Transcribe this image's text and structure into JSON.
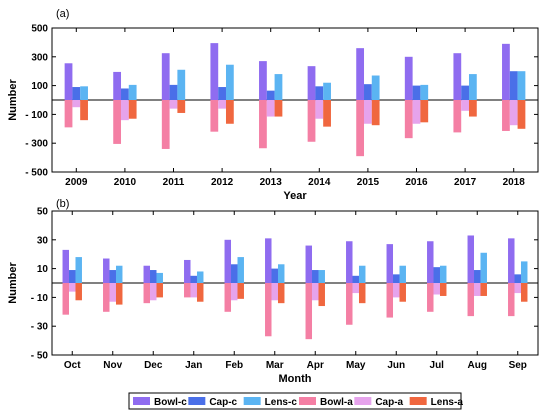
{
  "chart_data": [
    {
      "type": "bar",
      "panel_label": "(a)",
      "xlabel": "Year",
      "ylabel": "Number",
      "ylim": [
        -500,
        500
      ],
      "yticks": [
        -500,
        -300,
        -100,
        100,
        300,
        500
      ],
      "categories": [
        "2009",
        "2010",
        "2011",
        "2012",
        "2013",
        "2014",
        "2015",
        "2016",
        "2017",
        "2018"
      ],
      "series": [
        {
          "name": "Bowl-c",
          "color": "#8f6cf0",
          "values": [
            255,
            195,
            325,
            395,
            270,
            235,
            360,
            300,
            325,
            390
          ]
        },
        {
          "name": "Cap-c",
          "color": "#4a6fe8",
          "values": [
            90,
            80,
            105,
            90,
            65,
            95,
            110,
            100,
            100,
            200
          ]
        },
        {
          "name": "Lens-c",
          "color": "#5bb4f2",
          "values": [
            95,
            105,
            210,
            245,
            180,
            120,
            170,
            105,
            180,
            200
          ]
        },
        {
          "name": "Bowl-a",
          "color": "#f47fa4",
          "values": [
            -190,
            -305,
            -340,
            -220,
            -335,
            -290,
            -390,
            -265,
            -225,
            -215
          ]
        },
        {
          "name": "Cap-a",
          "color": "#e6a3ec",
          "values": [
            -50,
            -140,
            -60,
            -60,
            -115,
            -130,
            -165,
            -165,
            -75,
            -175
          ]
        },
        {
          "name": "Lens-a",
          "color": "#f0673f",
          "values": [
            -140,
            -130,
            -90,
            -165,
            -115,
            -185,
            -175,
            -155,
            -115,
            -200
          ]
        }
      ]
    },
    {
      "type": "bar",
      "panel_label": "(b)",
      "xlabel": "Month",
      "ylabel": "Number",
      "ylim": [
        -50,
        50
      ],
      "yticks": [
        -50,
        -30,
        -10,
        10,
        30,
        50
      ],
      "categories": [
        "Oct",
        "Nov",
        "Dec",
        "Jan",
        "Feb",
        "Mar",
        "Apr",
        "May",
        "Jun",
        "Jul",
        "Aug",
        "Sep"
      ],
      "series": [
        {
          "name": "Bowl-c",
          "color": "#8f6cf0",
          "values": [
            23,
            17,
            12,
            16,
            30,
            31,
            26,
            29,
            27,
            29,
            33,
            31
          ]
        },
        {
          "name": "Cap-c",
          "color": "#4a6fe8",
          "values": [
            9,
            9,
            9,
            5,
            13,
            10,
            9,
            5,
            6,
            11,
            9,
            6
          ]
        },
        {
          "name": "Lens-c",
          "color": "#5bb4f2",
          "values": [
            18,
            12,
            7,
            8,
            18,
            13,
            9,
            12,
            12,
            12,
            21,
            15
          ]
        },
        {
          "name": "Bowl-a",
          "color": "#f47fa4",
          "values": [
            -22,
            -20,
            -14,
            -10,
            -20,
            -37,
            -39,
            -29,
            -24,
            -20,
            -23,
            -23
          ]
        },
        {
          "name": "Cap-a",
          "color": "#e6a3ec",
          "values": [
            -6,
            -13,
            -12,
            -10,
            -12,
            -12,
            -12,
            -7,
            -10,
            -8,
            -9,
            -7
          ]
        },
        {
          "name": "Lens-a",
          "color": "#f0673f",
          "values": [
            -12,
            -15,
            -10,
            -13,
            -11,
            -14,
            -16,
            -14,
            -13,
            -9,
            -9,
            -13
          ]
        }
      ]
    }
  ],
  "legend": {
    "position": "bottom-center",
    "items": [
      {
        "label": "Bowl-c",
        "color": "#8f6cf0"
      },
      {
        "label": "Cap-c",
        "color": "#4a6fe8"
      },
      {
        "label": "Lens-c",
        "color": "#5bb4f2"
      },
      {
        "label": "Bowl-a",
        "color": "#f47fa4"
      },
      {
        "label": "Cap-a",
        "color": "#e6a3ec"
      },
      {
        "label": "Lens-a",
        "color": "#f0673f"
      }
    ]
  }
}
